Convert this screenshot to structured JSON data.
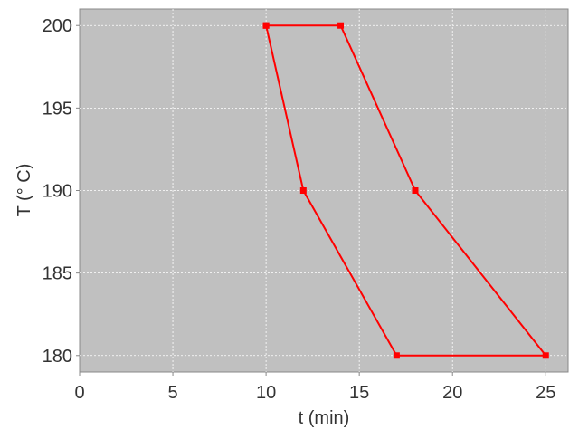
{
  "chart_data": {
    "type": "line",
    "title": "",
    "xlabel": "t (min)",
    "ylabel": "T (° C)",
    "xlim": [
      0,
      26.2
    ],
    "ylim": [
      179,
      201
    ],
    "xticks": [
      0,
      5,
      10,
      15,
      20,
      25
    ],
    "yticks": [
      180,
      185,
      190,
      195,
      200
    ],
    "grid": true,
    "background": "#c0c0c0",
    "series": [
      {
        "color": "#ff0000",
        "marker": "square",
        "x": [
          10,
          14,
          18,
          25,
          17,
          12,
          10
        ],
        "y": [
          200,
          200,
          190,
          180,
          180,
          190,
          200
        ]
      }
    ]
  }
}
